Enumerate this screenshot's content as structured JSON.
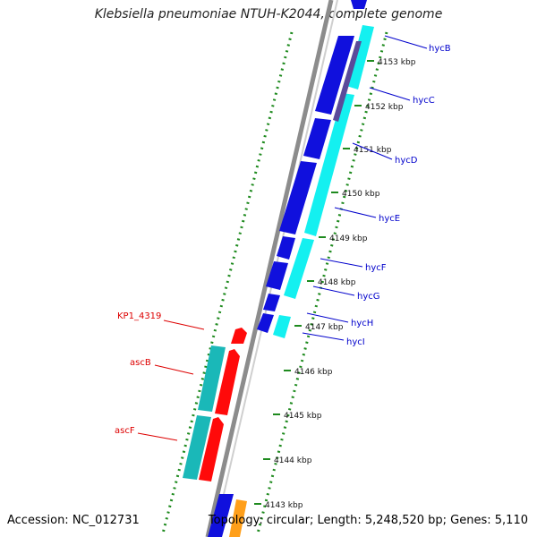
{
  "title": "Klebsiella pneumoniae NTUH-K2044, complete genome",
  "footer": {
    "accession": "Accession: NC_012731",
    "summary": "Topology: circular; Length: 5,248,520 bp; Genes: 5,110"
  },
  "colors": {
    "backbone": "#8c8c8c",
    "ticks": "#1e8a1e",
    "forward_cds": "#1010dd",
    "forward_feature": "#14f0f0",
    "reverse_cds": "#ff0a0a",
    "reverse_feature": "#1ab8b8",
    "right_labels": "#0000cc",
    "left_labels": "#dd0000",
    "orange": "#ff9f1a"
  },
  "scale": {
    "unit": "kbp",
    "labels": [
      "4153 kbp",
      "4152 kbp",
      "4151 kbp",
      "4150 kbp",
      "4149 kbp",
      "4148 kbp",
      "4147 kbp",
      "4146 kbp",
      "4145 kbp",
      "4144 kbp",
      "4143 kbp"
    ]
  },
  "genes_right": [
    "hycB",
    "hycC",
    "hycD",
    "hycE",
    "hycF",
    "hycG",
    "hycH",
    "hycI"
  ],
  "genes_left": [
    "KP1_4319",
    "ascB",
    "ascF"
  ]
}
